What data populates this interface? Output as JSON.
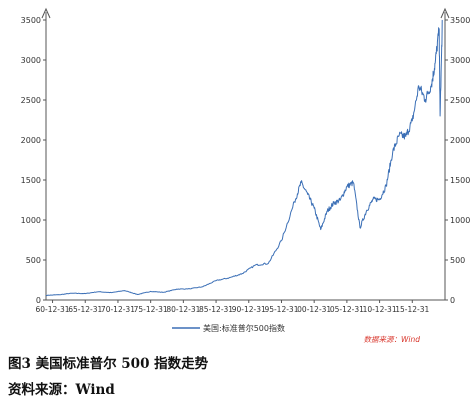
{
  "figure_caption": "图3 美国标准普尔 500 指数走势",
  "source_caption": "资料来源：Wind",
  "chart_data": {
    "type": "line",
    "xlabel": "",
    "ylabel": "",
    "ylim": [
      0,
      3600
    ],
    "y_ticks": [
      0,
      500,
      1000,
      1500,
      2000,
      2500,
      3000,
      3500
    ],
    "x_ticks": [
      "60-12-31",
      "65-12-31",
      "70-12-31",
      "75-12-31",
      "80-12-31",
      "85-12-31",
      "90-12-31",
      "95-12-31",
      "00-12-31",
      "05-12-31",
      "10-12-31",
      "15-12-31"
    ],
    "legend": [
      "美国:标准普尔500指数"
    ],
    "legend_position": "bottom-center",
    "grid": false,
    "source_note": "数据来源：Wind",
    "series_color": "#3b6fb6",
    "x": [
      1960,
      1962,
      1964,
      1966,
      1968,
      1970,
      1972,
      1974,
      1976,
      1978,
      1980,
      1982,
      1984,
      1986,
      1988,
      1990,
      1992,
      1994,
      1996,
      1998,
      1999,
      2000,
      2001,
      2002,
      2003,
      2004,
      2005,
      2006,
      2007,
      2008,
      2009,
      2010,
      2011,
      2012,
      2013,
      2014,
      2015,
      2016,
      2017,
      2018,
      2018.95,
      2019.5,
      2020.1,
      2020.25,
      2020.6
    ],
    "y": [
      58,
      66,
      85,
      80,
      104,
      92,
      118,
      69,
      107,
      96,
      136,
      140,
      167,
      242,
      277,
      330,
      436,
      459,
      740,
      1229,
      1469,
      1320,
      1148,
      880,
      1112,
      1212,
      1248,
      1418,
      1468,
      903,
      1115,
      1257,
      1258,
      1426,
      1848,
      2059,
      2044,
      2239,
      2674,
      2506,
      2700,
      2960,
      3386,
      2300,
      3500
    ]
  }
}
